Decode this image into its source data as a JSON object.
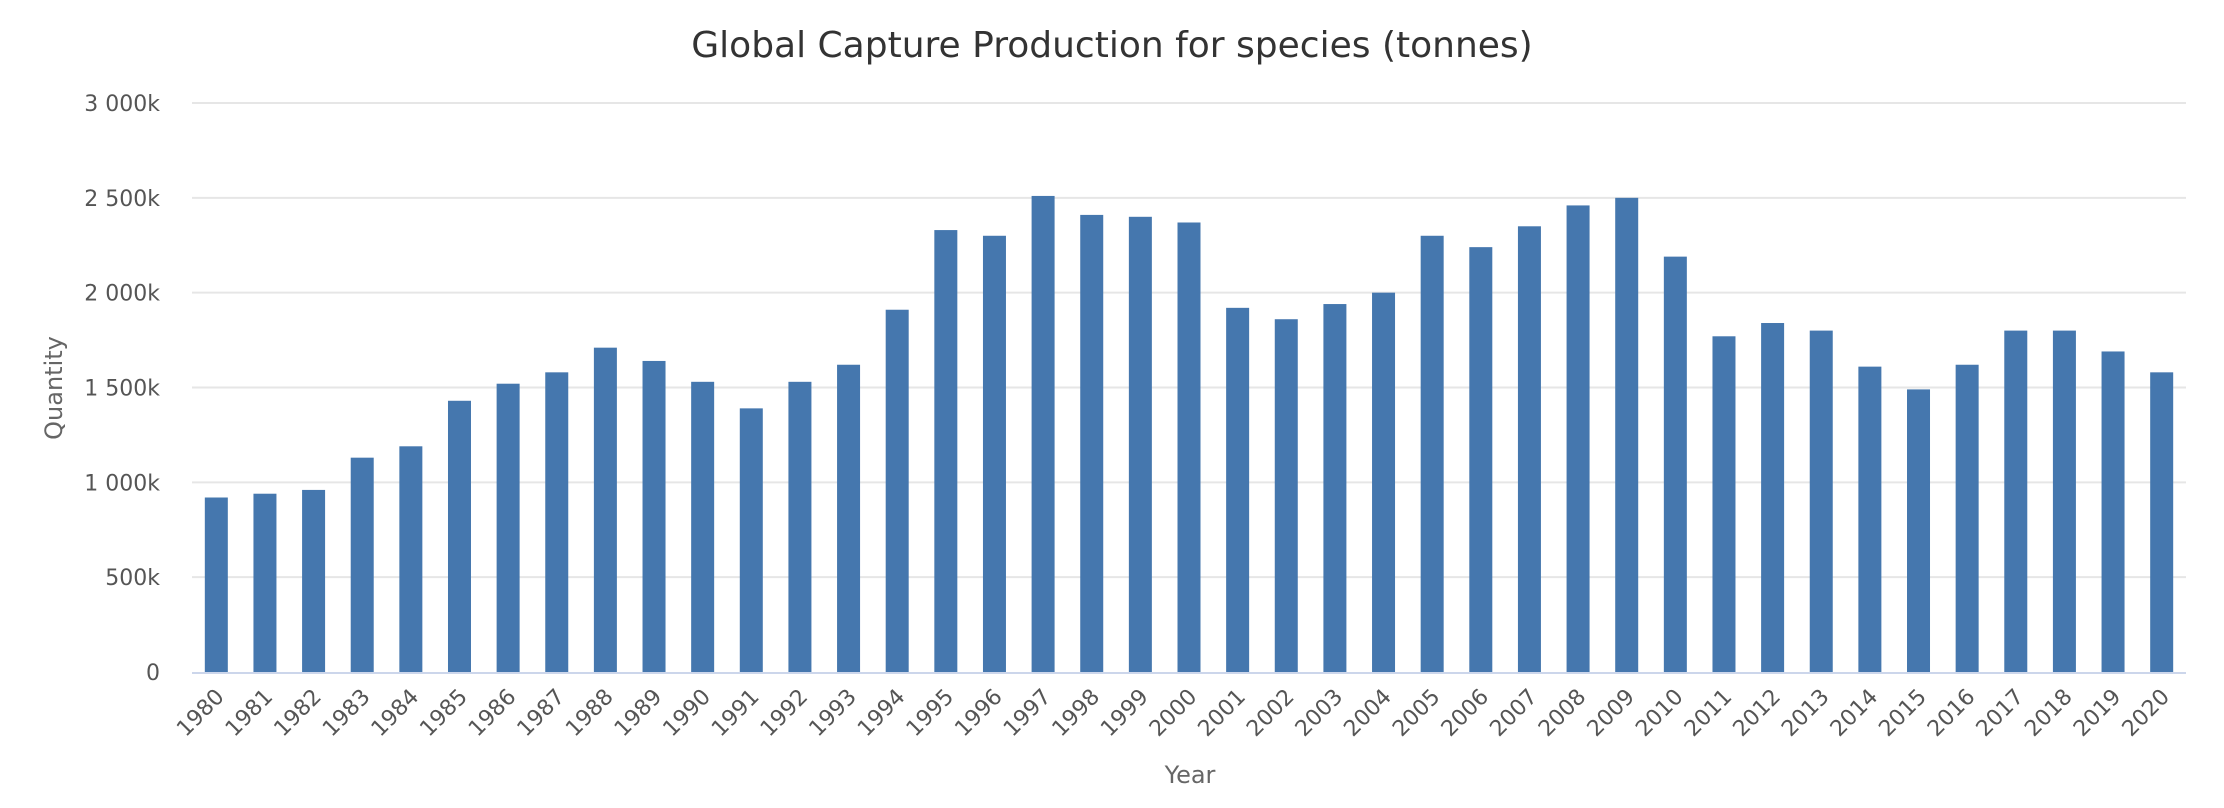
{
  "chart_data": {
    "type": "bar",
    "title": "Global Capture Production for species (tonnes)",
    "xlabel": "Year",
    "ylabel": "Quantity",
    "ylim": [
      0,
      3000000
    ],
    "y_ticks": [
      {
        "value": 0,
        "label": "0"
      },
      {
        "value": 500000,
        "label": "500k"
      },
      {
        "value": 1000000,
        "label": "1 000k"
      },
      {
        "value": 1500000,
        "label": "1 500k"
      },
      {
        "value": 2000000,
        "label": "2 000k"
      },
      {
        "value": 2500000,
        "label": "2 500k"
      },
      {
        "value": 3000000,
        "label": "3 000k"
      }
    ],
    "grid": true,
    "legend": "none",
    "bar_color": "#4577ae",
    "categories": [
      "1980",
      "1981",
      "1982",
      "1983",
      "1984",
      "1985",
      "1986",
      "1987",
      "1988",
      "1989",
      "1990",
      "1991",
      "1992",
      "1993",
      "1994",
      "1995",
      "1996",
      "1997",
      "1998",
      "1999",
      "2000",
      "2001",
      "2002",
      "2003",
      "2004",
      "2005",
      "2006",
      "2007",
      "2008",
      "2009",
      "2010",
      "2011",
      "2012",
      "2013",
      "2014",
      "2015",
      "2016",
      "2017",
      "2018",
      "2019",
      "2020"
    ],
    "values": [
      920000,
      940000,
      960000,
      1130000,
      1190000,
      1430000,
      1520000,
      1580000,
      1710000,
      1640000,
      1530000,
      1390000,
      1530000,
      1620000,
      1910000,
      2330000,
      2300000,
      2510000,
      2410000,
      2400000,
      2370000,
      1920000,
      1860000,
      1940000,
      2000000,
      2300000,
      2240000,
      2350000,
      2460000,
      2500000,
      2190000,
      1770000,
      1840000,
      1800000,
      1610000,
      1490000,
      1620000,
      1800000,
      1800000,
      1690000,
      1580000
    ]
  }
}
